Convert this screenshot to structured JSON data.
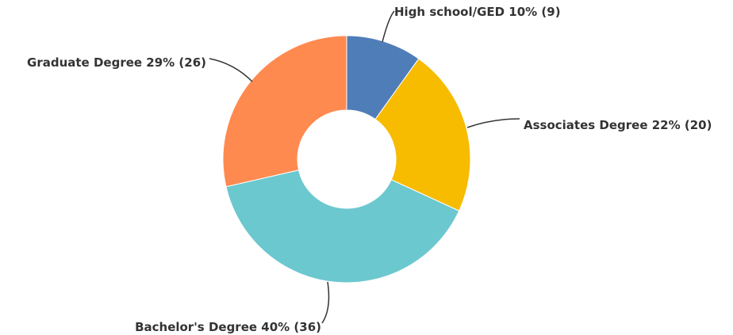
{
  "chart_data": {
    "type": "pie",
    "variant": "donut",
    "title": "",
    "slices": [
      {
        "label": "High school/GED 10% (9)",
        "category": "High school/GED",
        "percent": 10,
        "count": 9,
        "color": "#4f7db8"
      },
      {
        "label": "Associates Degree 22% (20)",
        "category": "Associates Degree",
        "percent": 22,
        "count": 20,
        "color": "#f7bb00"
      },
      {
        "label": "Bachelor's Degree 40% (36)",
        "category": "Bachelor's Degree",
        "percent": 40,
        "count": 36,
        "color": "#6cc8cf"
      },
      {
        "label": "Graduate Degree 29% (26)",
        "category": "Graduate Degree",
        "percent": 29,
        "count": 26,
        "color": "#ff8a50"
      }
    ],
    "legend": "none",
    "labels": "outside-with-leader-lines"
  }
}
